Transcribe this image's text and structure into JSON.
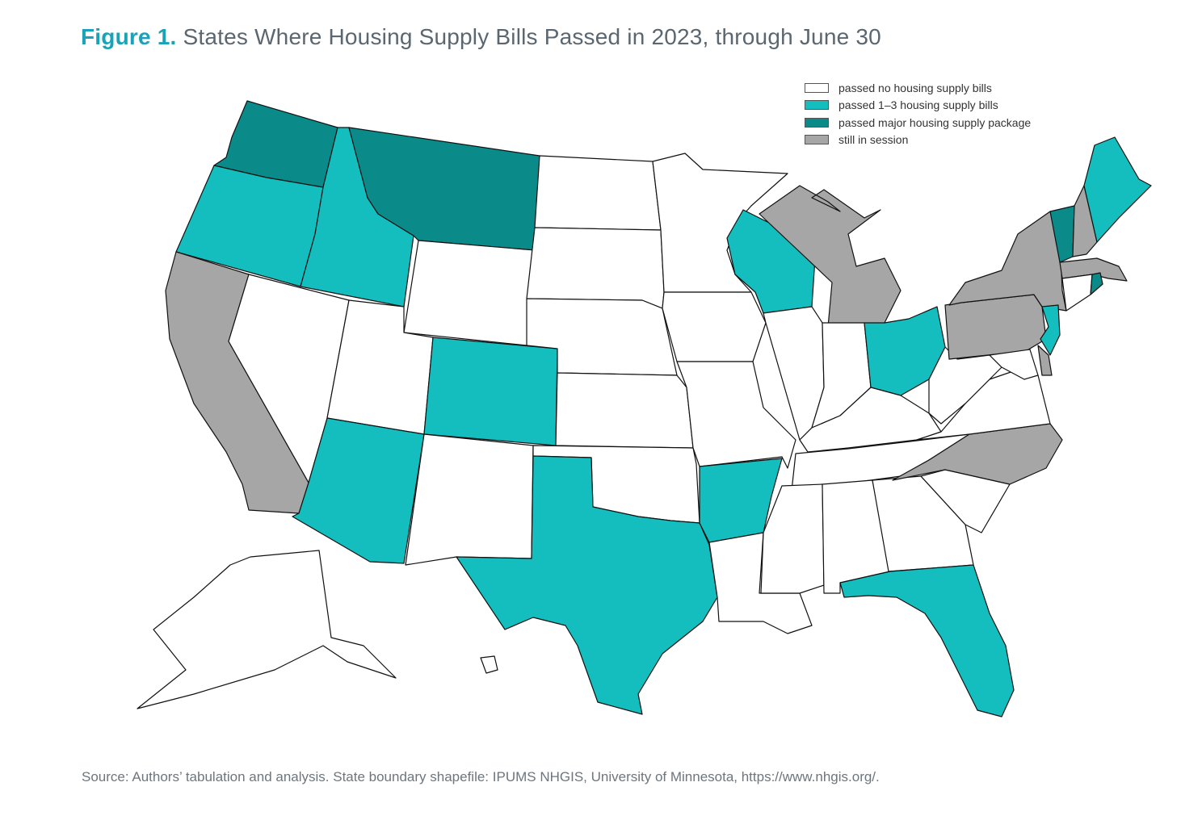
{
  "title": {
    "figure_label": "Figure 1.",
    "text": "States Where Housing Supply Bills Passed in 2023, through June 30"
  },
  "legend": [
    {
      "key": "none",
      "label": "passed no housing supply bills",
      "color": "#ffffff"
    },
    {
      "key": "some",
      "label": "passed 1–3 housing supply bills",
      "color": "#14bebe"
    },
    {
      "key": "major",
      "label": "passed major housing supply package",
      "color": "#0b8a8a"
    },
    {
      "key": "session",
      "label": "still in session",
      "color": "#a6a6a7"
    }
  ],
  "states": {
    "WA": "major",
    "OR": "some",
    "CA": "session",
    "NV": "none",
    "ID": "some",
    "MT": "major",
    "WY": "none",
    "UT": "none",
    "AZ": "some",
    "CO": "some",
    "NM": "none",
    "ND": "none",
    "SD": "none",
    "NE": "none",
    "KS": "none",
    "OK": "none",
    "TX": "some",
    "MN": "none",
    "IA": "none",
    "MO": "none",
    "AR": "some",
    "LA": "none",
    "WI": "some",
    "IL": "none",
    "MI": "session",
    "IN": "none",
    "OH": "some",
    "KY": "none",
    "TN": "none",
    "MS": "none",
    "AL": "none",
    "GA": "none",
    "FL": "some",
    "SC": "none",
    "NC": "session",
    "VA": "none",
    "WV": "none",
    "PA": "session",
    "NY": "session",
    "VT": "major",
    "NH": "session",
    "ME": "some",
    "MA": "session",
    "CT": "none",
    "RI": "major",
    "NJ": "some",
    "DE": "session",
    "MD": "none",
    "AK": "none",
    "HI": "none"
  },
  "source": "Source: Authors’ tabulation and analysis. State boundary shapefile: IPUMS NHGIS, University of Minnesota, https://www.nhgis.org/."
}
